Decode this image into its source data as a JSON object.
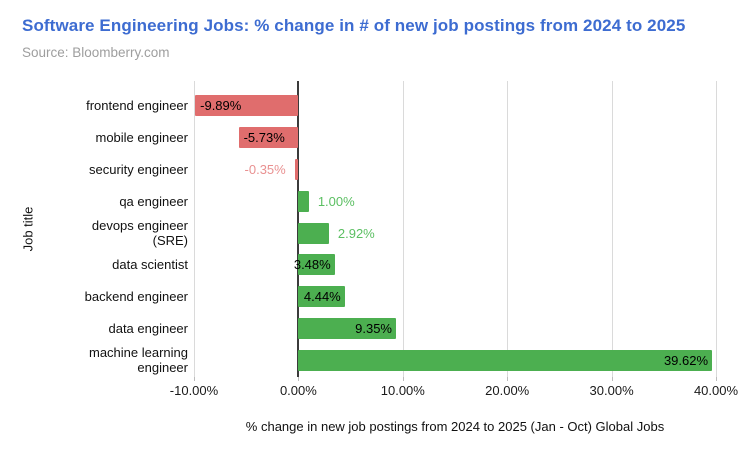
{
  "chart_data": {
    "type": "bar",
    "orientation": "horizontal",
    "title": "Software Engineering Jobs: % change in # of new job postings from 2024 to 2025",
    "subtitle": "Source: Bloomberry.com",
    "xlabel": "% change in new job postings from 2024 to 2025 (Jan - Oct) Global Jobs",
    "ylabel": "Job title",
    "categories": [
      "frontend engineer",
      "mobile engineer",
      "security engineer",
      "qa engineer",
      "devops engineer (SRE)",
      "data scientist",
      "backend engineer",
      "data engineer",
      "machine learning engineer"
    ],
    "values": [
      -9.89,
      -5.73,
      -0.35,
      1.0,
      2.92,
      3.48,
      4.44,
      9.35,
      39.62
    ],
    "value_labels": [
      "-9.89%",
      "-5.73%",
      "-0.35%",
      "1.00%",
      "2.92%",
      "3.48%",
      "4.44%",
      "9.35%",
      "39.62%"
    ],
    "xlim": [
      -10,
      40
    ],
    "xticks": [
      -10,
      0,
      10,
      20,
      30,
      40
    ],
    "xtick_labels": [
      "-10.00%",
      "0.00%",
      "10.00%",
      "20.00%",
      "30.00%",
      "40.00%"
    ],
    "grid": "vertical-only",
    "legend": "none",
    "colors": {
      "title": "#3d6cd1",
      "subtitle": "#9e9e9e",
      "positive_bar": "#4caf50",
      "negative_bar": "#e06d6d",
      "inside_label": "#000000",
      "outside_positive_label": "#5bbf62",
      "outside_negative_label": "#e99191",
      "gridline": "#dadada",
      "zero_line": "#3b3b3b"
    }
  }
}
